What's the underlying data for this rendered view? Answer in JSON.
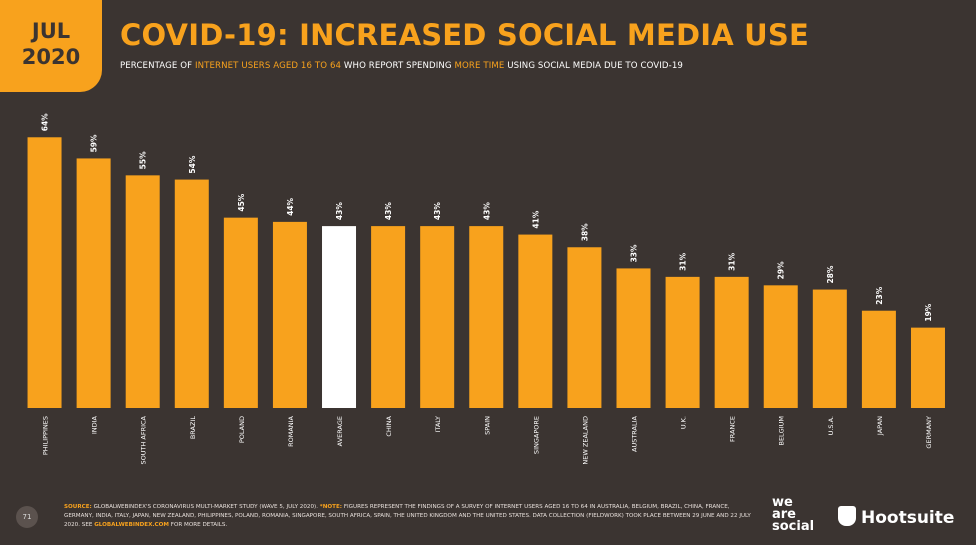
{
  "badge": {
    "month": "JUL",
    "year": "2020"
  },
  "chart_data": {
    "type": "bar",
    "title": "COVID-19: INCREASED SOCIAL MEDIA USE",
    "subtitle": [
      {
        "text": "PERCENTAGE OF ",
        "highlight": false
      },
      {
        "text": "INTERNET USERS AGED 16 TO 64",
        "highlight": true
      },
      {
        "text": " WHO REPORT SPENDING ",
        "highlight": false
      },
      {
        "text": "MORE TIME",
        "highlight": true
      },
      {
        "text": " USING SOCIAL MEDIA DUE TO COVID-19",
        "highlight": false
      }
    ],
    "categories": [
      "PHILIPPINES",
      "INDIA",
      "SOUTH AFRICA",
      "BRAZIL",
      "POLAND",
      "ROMANIA",
      "AVERAGE",
      "CHINA",
      "ITALY",
      "SPAIN",
      "SINGAPORE",
      "NEW ZEALAND",
      "AUSTRALIA",
      "U.K.",
      "FRANCE",
      "BELGIUM",
      "U.S.A.",
      "JAPAN",
      "GERMANY"
    ],
    "values": [
      64,
      59,
      55,
      54,
      45,
      44,
      43,
      43,
      43,
      43,
      41,
      38,
      33,
      31,
      31,
      29,
      28,
      23,
      19
    ],
    "value_labels": [
      "64%",
      "59%",
      "55%",
      "54%",
      "45%",
      "44%",
      "43%",
      "43%",
      "43%",
      "43%",
      "41%",
      "38%",
      "33%",
      "31%",
      "31%",
      "29%",
      "28%",
      "23%",
      "19%"
    ],
    "colors": [
      "#f8a21d",
      "#f8a21d",
      "#f8a21d",
      "#f8a21d",
      "#f8a21d",
      "#f8a21d",
      "#ffffff",
      "#f8a21d",
      "#f8a21d",
      "#f8a21d",
      "#f8a21d",
      "#f8a21d",
      "#f8a21d",
      "#f8a21d",
      "#f8a21d",
      "#f8a21d",
      "#f8a21d",
      "#f8a21d",
      "#f8a21d"
    ]
  },
  "footer": {
    "page": "71",
    "source_label": "SOURCE:",
    "source": "GLOBALWEBINDEX'S CORONAVIRUS MULTI-MARKET STUDY (WAVE 5, JULY 2020).",
    "note_label": "*NOTE:",
    "note": "FIGURES REPRESENT THE FINDINGS OF A SURVEY OF INTERNET USERS AGED 16 TO 64 IN AUSTRALIA, BELGIUM, BRAZIL, CHINA, FRANCE, GERMANY, INDIA, ITALY, JAPAN, NEW ZEALAND, PHILIPPINES, POLAND, ROMANIA, SINGAPORE, SOUTH AFRICA, SPAIN, THE UNITED KINGDOM AND THE UNITED STATES. DATA COLLECTION (FIELDWORK) TOOK PLACE BETWEEN 29 JUNE AND 22 JULY 2020. SEE",
    "link": "GLOBALWEBINDEX.COM",
    "tail": "FOR MORE DETAILS.",
    "logo_was": [
      "we",
      "are",
      "social"
    ],
    "logo_hootsuite": "Hootsuite"
  }
}
